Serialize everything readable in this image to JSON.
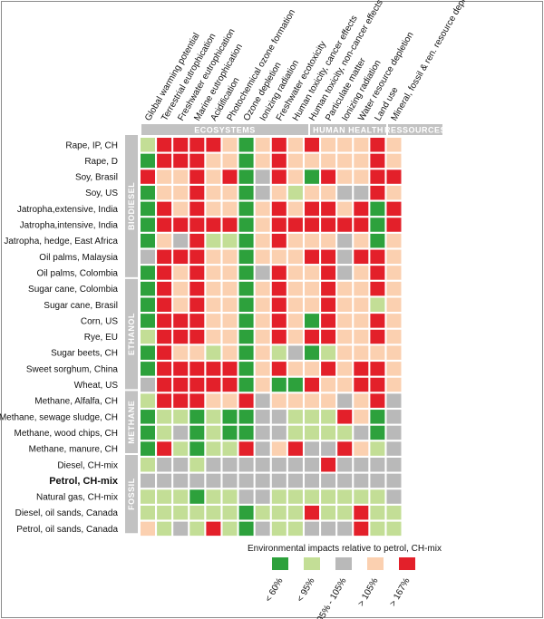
{
  "colors": {
    "lt60": "#2da13c",
    "lt95": "#c3de96",
    "eq": "#b9b9b9",
    "gt105": "#fbd0b0",
    "gt167": "#e3202a",
    "group_bg": "#c2c2c2"
  },
  "chart_data": {
    "type": "heatmap",
    "indicators": [
      "Global warming potential",
      "Terrestrial eutrophication",
      "Freshwater eutrophication",
      "Marine eutrophication",
      "Acidification",
      "Photochemical ozone formation",
      "Ozone depletion",
      "Ionizing radiation",
      "Freshwater ecotoxicity",
      "Human toxicity, cancer effects",
      "Human toxicity, non-cancer effects",
      "Particulate matter",
      "Ionizing radiation",
      "Water resource depletion",
      "Land use",
      "Mineral, fossil & ren. resource depletion"
    ],
    "column_groups": [
      {
        "label": "ECOSYSTEMS"
      },
      {
        "label": "HUMAN HEALTH"
      },
      {
        "label": "RESSOURCES"
      }
    ],
    "row_groups": [
      {
        "label": "BIODIESEL"
      },
      {
        "label": "ETHANOL"
      },
      {
        "label": "METHANE"
      },
      {
        "label": "FOSSIL"
      }
    ],
    "rows": [
      {
        "label": "Rape, IP, CH",
        "values": [
          2,
          5,
          5,
          5,
          5,
          4,
          1,
          4,
          5,
          4,
          5,
          4,
          4,
          4,
          5,
          4
        ]
      },
      {
        "label": "Rape, D",
        "values": [
          1,
          5,
          5,
          5,
          4,
          4,
          1,
          4,
          5,
          4,
          4,
          4,
          4,
          4,
          5,
          4
        ]
      },
      {
        "label": "Soy, Brasil",
        "values": [
          5,
          4,
          4,
          5,
          4,
          5,
          1,
          3,
          5,
          4,
          1,
          5,
          4,
          4,
          5,
          5
        ]
      },
      {
        "label": "Soy, US",
        "values": [
          1,
          4,
          4,
          5,
          4,
          4,
          1,
          3,
          4,
          2,
          4,
          4,
          3,
          3,
          5,
          4
        ]
      },
      {
        "label": "Jatropha,extensive, India",
        "values": [
          1,
          5,
          4,
          5,
          4,
          4,
          1,
          4,
          5,
          4,
          5,
          5,
          4,
          5,
          1,
          5
        ]
      },
      {
        "label": "Jatropha,intensive, India",
        "values": [
          1,
          5,
          5,
          5,
          5,
          5,
          1,
          4,
          5,
          5,
          5,
          5,
          5,
          5,
          1,
          5
        ]
      },
      {
        "label": "Jatropha, hedge, East Africa",
        "values": [
          1,
          4,
          3,
          5,
          2,
          2,
          1,
          4,
          5,
          4,
          4,
          4,
          3,
          4,
          1,
          4
        ]
      },
      {
        "label": "Oil palms, Malaysia",
        "values": [
          3,
          5,
          5,
          5,
          4,
          4,
          1,
          4,
          4,
          4,
          5,
          5,
          3,
          5,
          5,
          4
        ]
      },
      {
        "label": "Oil palms, Colombia",
        "values": [
          1,
          5,
          4,
          5,
          4,
          4,
          1,
          3,
          5,
          4,
          4,
          5,
          3,
          4,
          5,
          4
        ]
      },
      {
        "label": "Sugar cane, Colombia",
        "values": [
          1,
          5,
          4,
          5,
          4,
          4,
          1,
          4,
          5,
          4,
          4,
          5,
          4,
          4,
          5,
          4
        ]
      },
      {
        "label": "Sugar cane, Brasil",
        "values": [
          1,
          5,
          4,
          5,
          4,
          4,
          1,
          4,
          5,
          4,
          4,
          5,
          4,
          4,
          2,
          4
        ]
      },
      {
        "label": "Corn, US",
        "values": [
          1,
          5,
          5,
          5,
          4,
          4,
          1,
          4,
          5,
          4,
          1,
          5,
          4,
          4,
          5,
          4
        ]
      },
      {
        "label": "Rye, EU",
        "values": [
          2,
          5,
          5,
          5,
          4,
          4,
          1,
          4,
          5,
          4,
          5,
          5,
          4,
          4,
          5,
          4
        ]
      },
      {
        "label": "Sugar beets, CH",
        "values": [
          1,
          5,
          4,
          4,
          2,
          4,
          1,
          4,
          2,
          3,
          1,
          2,
          4,
          4,
          4,
          4
        ]
      },
      {
        "label": "Sweet sorghum, China",
        "values": [
          1,
          5,
          5,
          5,
          5,
          5,
          1,
          4,
          5,
          4,
          4,
          5,
          4,
          5,
          5,
          4
        ]
      },
      {
        "label": "Wheat, US",
        "values": [
          3,
          5,
          5,
          5,
          5,
          5,
          1,
          4,
          1,
          1,
          5,
          4,
          4,
          5,
          5,
          4
        ]
      },
      {
        "label": "Methane, Alfalfa, CH",
        "values": [
          2,
          5,
          5,
          5,
          4,
          4,
          5,
          3,
          4,
          4,
          4,
          4,
          3,
          4,
          5,
          3
        ]
      },
      {
        "label": "Methane, sewage sludge, CH",
        "values": [
          1,
          2,
          2,
          1,
          2,
          1,
          1,
          3,
          3,
          2,
          2,
          2,
          5,
          4,
          1,
          3
        ]
      },
      {
        "label": "Methane, wood chips, CH",
        "values": [
          1,
          2,
          3,
          1,
          2,
          1,
          1,
          3,
          3,
          2,
          2,
          2,
          2,
          3,
          1,
          3
        ]
      },
      {
        "label": "Methane, manure, CH",
        "values": [
          1,
          5,
          2,
          1,
          2,
          2,
          5,
          3,
          4,
          5,
          3,
          3,
          5,
          4,
          2,
          3
        ]
      },
      {
        "label": "Diesel, CH-mix",
        "values": [
          2,
          3,
          3,
          2,
          3,
          3,
          3,
          3,
          3,
          3,
          3,
          5,
          3,
          3,
          3,
          3
        ]
      },
      {
        "label": "Petrol, CH-mix",
        "values": [
          3,
          3,
          3,
          3,
          3,
          3,
          3,
          3,
          3,
          3,
          3,
          3,
          3,
          3,
          3,
          3
        ],
        "bold": true
      },
      {
        "label": "Natural gas, CH-mix",
        "values": [
          2,
          2,
          2,
          1,
          2,
          2,
          3,
          3,
          2,
          2,
          2,
          2,
          2,
          2,
          2,
          3
        ]
      },
      {
        "label": "Diesel, oil sands, Canada",
        "values": [
          2,
          2,
          2,
          2,
          2,
          2,
          1,
          2,
          2,
          2,
          5,
          2,
          2,
          5,
          2,
          2
        ]
      },
      {
        "label": "Petrol, oil sands, Canada",
        "values": [
          4,
          2,
          3,
          2,
          5,
          2,
          1,
          3,
          2,
          2,
          3,
          3,
          3,
          5,
          2,
          2
        ]
      }
    ],
    "legend": {
      "title": "Environmental impacts relative to petrol, CH-mix",
      "items": [
        {
          "label": "< 60%",
          "color": "#2da13c"
        },
        {
          "label": "< 95%",
          "color": "#c3de96"
        },
        {
          "label": "95% - 105%",
          "color": "#b9b9b9"
        },
        {
          "label": "> 105%",
          "color": "#fbd0b0"
        },
        {
          "label": "> 167%",
          "color": "#e3202a"
        }
      ]
    }
  }
}
